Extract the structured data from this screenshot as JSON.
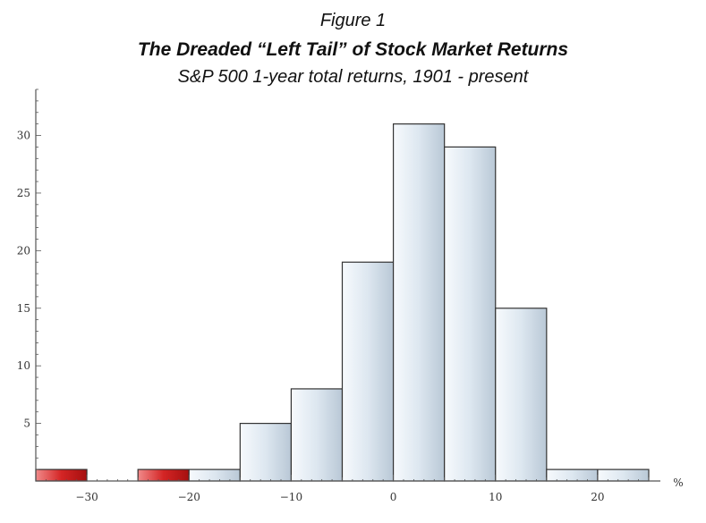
{
  "header": {
    "figure_label": "Figure 1",
    "title": "The Dreaded “Left Tail” of Stock Market Returns",
    "subtitle": "S&P 500 1-year total returns, 1901 - present"
  },
  "chart_data": {
    "type": "bar",
    "title": "The Dreaded “Left Tail” of Stock Market Returns",
    "subtitle": "S&P 500 1-year total returns, 1901 - present",
    "xlabel": "%",
    "ylabel": "",
    "xlim": [
      -35,
      25
    ],
    "ylim": [
      0,
      34
    ],
    "x_ticks": [
      -30,
      -20,
      -10,
      0,
      10,
      20
    ],
    "y_ticks": [
      5,
      10,
      15,
      20,
      25,
      30
    ],
    "bins": [
      {
        "from": -35,
        "to": -30,
        "value": 1,
        "highlight": true
      },
      {
        "from": -25,
        "to": -20,
        "value": 1,
        "highlight": true
      },
      {
        "from": -20,
        "to": -15,
        "value": 1,
        "highlight": false
      },
      {
        "from": -15,
        "to": -10,
        "value": 5,
        "highlight": false
      },
      {
        "from": -10,
        "to": -5,
        "value": 8,
        "highlight": false
      },
      {
        "from": -5,
        "to": 0,
        "value": 19,
        "highlight": false
      },
      {
        "from": 0,
        "to": 5,
        "value": 31,
        "highlight": false
      },
      {
        "from": 5,
        "to": 10,
        "value": 29,
        "highlight": false
      },
      {
        "from": 10,
        "to": 15,
        "value": 15,
        "highlight": false
      },
      {
        "from": 15,
        "to": 20,
        "value": 1,
        "highlight": false
      },
      {
        "from": 20,
        "to": 25,
        "value": 1,
        "highlight": false
      }
    ],
    "colors": {
      "normal": "#dbe6ef",
      "highlight": "#d42525",
      "outline": "#333333"
    },
    "grid": false
  }
}
